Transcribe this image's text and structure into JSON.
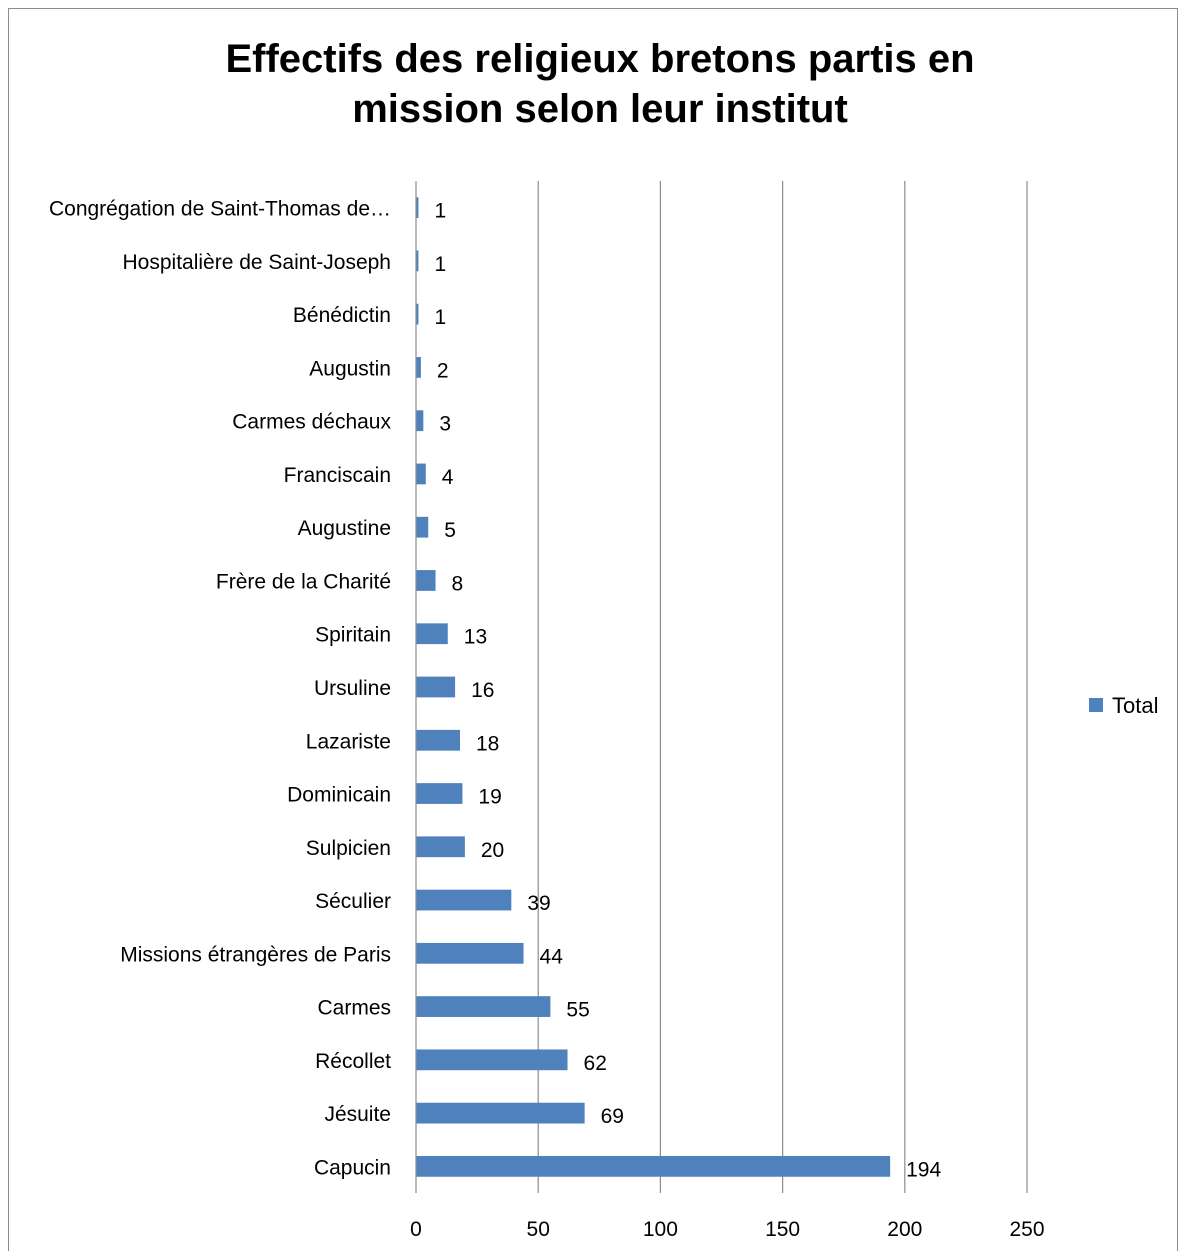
{
  "chart_data": {
    "type": "bar",
    "orientation": "horizontal",
    "title": [
      "Effectifs des religieux bretons partis en",
      "mission selon leur institut"
    ],
    "categories": [
      "Congrégation de Saint-Thomas de…",
      "Hospitalière de Saint-Joseph",
      "Bénédictin",
      "Augustin",
      "Carmes déchaux",
      "Franciscain",
      "Augustine",
      "Frère de la Charité",
      "Spiritain",
      "Ursuline",
      "Lazariste",
      "Dominicain",
      "Sulpicien",
      "Séculier",
      "Missions étrangères de Paris",
      "Carmes",
      "Récollet",
      "Jésuite",
      "Capucin"
    ],
    "series": [
      {
        "name": "Total",
        "color": "#4f81bd",
        "values": [
          1,
          1,
          1,
          2,
          3,
          4,
          5,
          8,
          13,
          16,
          18,
          19,
          20,
          39,
          44,
          55,
          62,
          69,
          194
        ]
      }
    ],
    "xlim": [
      0,
      250
    ],
    "xticks": [
      0,
      50,
      100,
      150,
      200,
      250
    ],
    "xlabel": "",
    "ylabel": "",
    "grid": true,
    "legend": "right"
  }
}
